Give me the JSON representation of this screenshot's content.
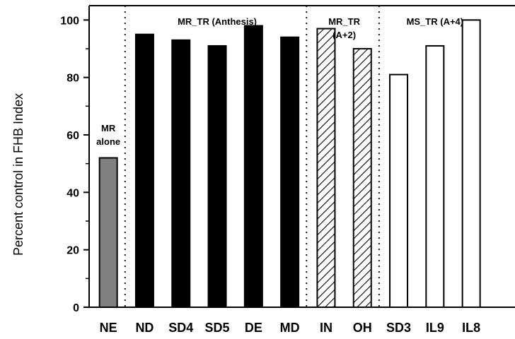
{
  "chart_data": {
    "type": "bar",
    "title": "",
    "xlabel": "",
    "ylabel": "Percent control in FHB Index",
    "ylim": [
      0,
      105
    ],
    "yticks": [
      0,
      20,
      40,
      60,
      80,
      100
    ],
    "categories": [
      "NE",
      "ND",
      "SD4",
      "SD5",
      "DE",
      "MD",
      "IN",
      "OH",
      "SD3",
      "IL9",
      "IL8"
    ],
    "values": [
      52,
      95,
      93,
      91,
      98,
      94,
      97,
      90,
      81,
      91,
      100
    ],
    "bar_styles": [
      "gray",
      "black",
      "black",
      "black",
      "black",
      "black",
      "hatched",
      "hatched",
      "white",
      "white",
      "white"
    ],
    "groups": [
      {
        "label_lines": [
          "MR",
          "alone"
        ],
        "start": 0,
        "end": 0
      },
      {
        "label_lines": [
          "MR_TR (Anthesis)"
        ],
        "start": 1,
        "end": 5
      },
      {
        "label_lines": [
          "MR_TR",
          "(A+2)"
        ],
        "start": 6,
        "end": 7
      },
      {
        "label_lines": [
          "MS_TR (A+4)"
        ],
        "start": 8,
        "end": 10
      }
    ],
    "colors": {
      "gray": "#808080",
      "black": "#000000",
      "white": "#ffffff",
      "outline": "#000000"
    },
    "grid": false,
    "legend": "none"
  }
}
